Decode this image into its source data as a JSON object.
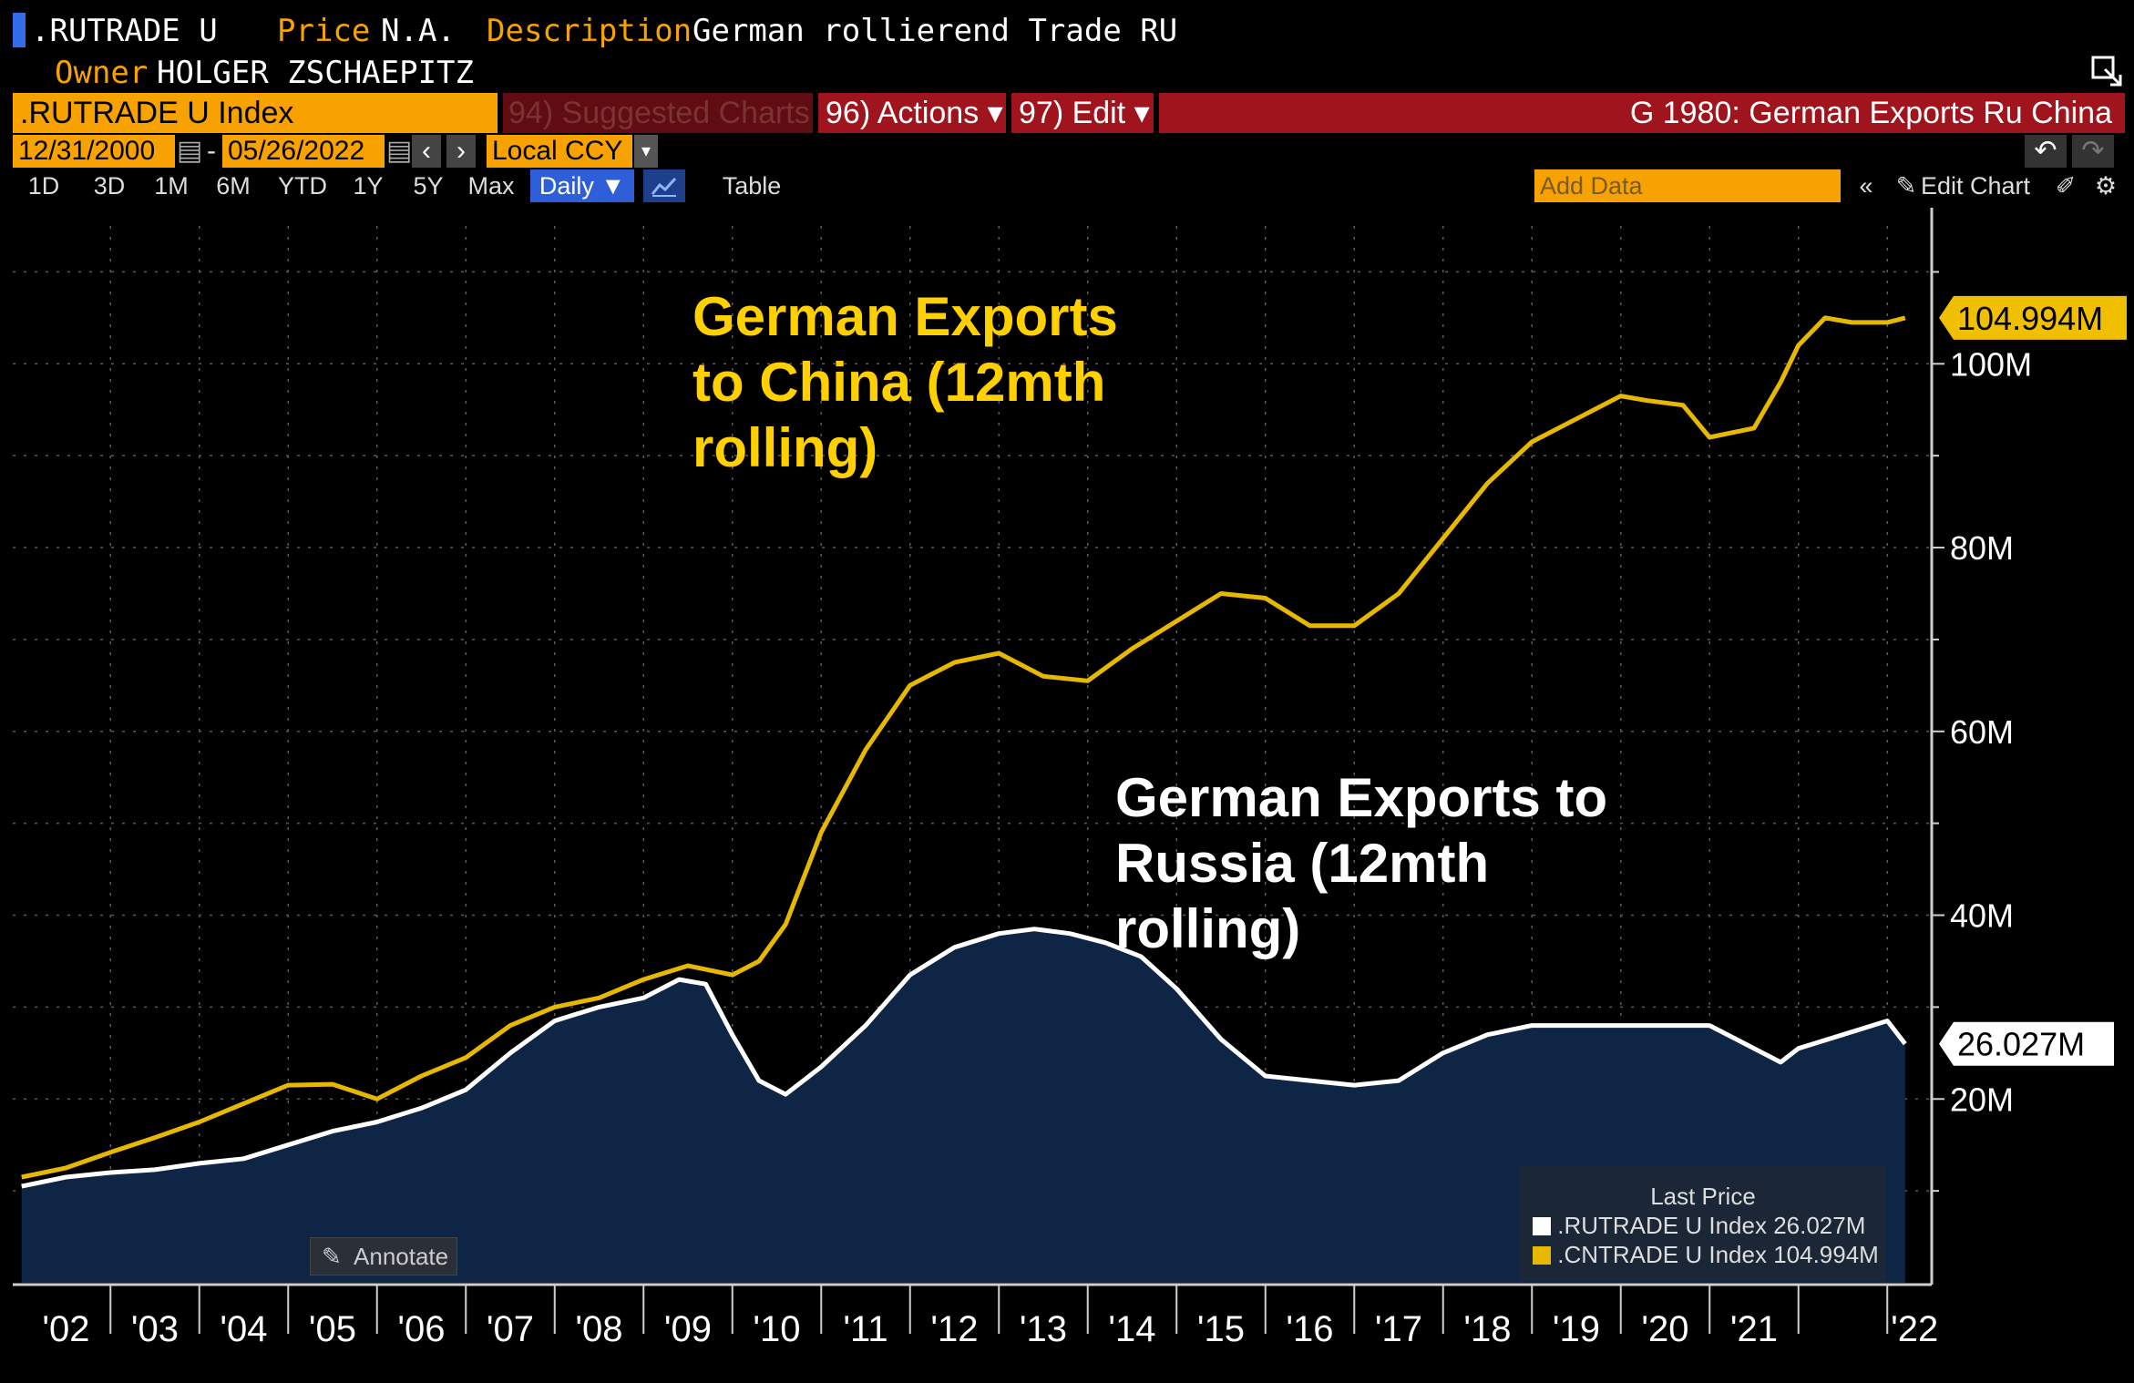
{
  "header": {
    "ticker": ".RUTRADE U",
    "price_label": "Price",
    "price_value": "N.A.",
    "description_label": "Description",
    "description_value": "German rollierend Trade RU",
    "owner_label": "Owner",
    "owner_value": "HOLGER ZSCHAEPITZ"
  },
  "toolbar": {
    "security": ".RUTRADE U Index",
    "suggested": "94) Suggested Charts",
    "actions": "96) Actions ▾",
    "edit": "97) Edit ▾",
    "chart_title": "G 1980: German Exports Ru China",
    "start_date": "12/31/2000",
    "date_sep": "-",
    "end_date": "05/26/2022",
    "currency": "Local CCY",
    "add_data_placeholder": "Add Data",
    "edit_chart": "Edit Chart"
  },
  "ranges": [
    "1D",
    "3D",
    "1M",
    "6M",
    "YTD",
    "1Y",
    "5Y",
    "Max"
  ],
  "frequency": "Daily ▼",
  "table_label": "Table",
  "annotate_label": "Annotate",
  "colors": {
    "china_line": "#e6b800",
    "russia_line": "#ffffff",
    "russia_fill": "#0f2545",
    "china_label": "#ffd000",
    "last_price_china_bg": "#f0c000"
  },
  "chart_data": {
    "type": "line",
    "xlabel": "",
    "ylabel": "",
    "ylim": [
      0,
      115
    ],
    "xlim": [
      2000.9,
      2022.5
    ],
    "y_ticks": [
      20,
      40,
      60,
      80,
      100
    ],
    "y_tick_labels": [
      "20M",
      "40M",
      "60M",
      "80M",
      "100M"
    ],
    "x_tick_labels": [
      "'02",
      "'03",
      "'04",
      "'05",
      "'06",
      "'07",
      "'08",
      "'09",
      "'10",
      "'11",
      "'12",
      "'13",
      "'14",
      "'15",
      "'16",
      "'17",
      "'18",
      "'19",
      "'20",
      "'21",
      "'22"
    ],
    "x_tick_years": [
      2002,
      2003,
      2004,
      2005,
      2006,
      2007,
      2008,
      2009,
      2010,
      2011,
      2012,
      2013,
      2014,
      2015,
      2016,
      2017,
      2018,
      2019,
      2020,
      2021,
      2022
    ],
    "grid": true,
    "annotations": {
      "china": "German Exports\nto China (12mth\nrolling)",
      "russia": "German Exports to\nRussia (12mth\nrolling)"
    },
    "legend": {
      "title": "Last Price",
      "placement": "bottom-right",
      "entries": [
        {
          "name": ".RUTRADE U Index",
          "value": "26.027M"
        },
        {
          "name": ".CNTRADE U Index",
          "value": "104.994M"
        }
      ]
    },
    "last_labels": {
      "china": "104.994M",
      "russia": "26.027M"
    },
    "series": [
      {
        "name": ".CNTRADE U Index",
        "x": [
          2001.0,
          2001.5,
          2002.0,
          2002.5,
          2003.0,
          2003.5,
          2004.0,
          2004.5,
          2005.0,
          2005.5,
          2006.0,
          2006.5,
          2007.0,
          2007.5,
          2008.0,
          2008.5,
          2009.0,
          2009.3,
          2009.6,
          2010.0,
          2010.5,
          2011.0,
          2011.5,
          2012.0,
          2012.5,
          2013.0,
          2013.5,
          2014.0,
          2014.5,
          2015.0,
          2015.5,
          2016.0,
          2016.5,
          2017.0,
          2017.5,
          2018.0,
          2018.5,
          2019.0,
          2019.3,
          2019.7,
          2020.0,
          2020.5,
          2020.8,
          2021.0,
          2021.3,
          2021.6,
          2022.0,
          2022.2
        ],
        "values": [
          11.5,
          12.5,
          14.2,
          15.8,
          17.5,
          19.5,
          21.5,
          21.6,
          20.0,
          22.5,
          24.5,
          28.0,
          30.0,
          31.0,
          33.0,
          34.5,
          33.5,
          35.0,
          39.0,
          49.0,
          58.0,
          65.0,
          67.5,
          68.5,
          66.0,
          65.5,
          69.0,
          72.0,
          75.0,
          74.5,
          71.5,
          71.5,
          75.0,
          81.0,
          87.0,
          91.5,
          94.0,
          96.5,
          96.0,
          95.5,
          92.0,
          93.0,
          98.0,
          102.0,
          105.0,
          104.5,
          104.5,
          105.0
        ]
      },
      {
        "name": ".RUTRADE U Index",
        "x": [
          2001.0,
          2001.5,
          2002.0,
          2002.5,
          2003.0,
          2003.5,
          2004.0,
          2004.5,
          2005.0,
          2005.5,
          2006.0,
          2006.5,
          2007.0,
          2007.5,
          2008.0,
          2008.4,
          2008.7,
          2009.0,
          2009.3,
          2009.6,
          2010.0,
          2010.5,
          2011.0,
          2011.5,
          2012.0,
          2012.4,
          2012.8,
          2013.2,
          2013.6,
          2014.0,
          2014.5,
          2015.0,
          2015.5,
          2016.0,
          2016.5,
          2017.0,
          2017.5,
          2018.0,
          2018.5,
          2019.0,
          2019.5,
          2020.0,
          2020.5,
          2020.8,
          2021.0,
          2021.5,
          2022.0,
          2022.2
        ],
        "values": [
          10.5,
          11.5,
          12.0,
          12.3,
          13.0,
          13.5,
          15.0,
          16.5,
          17.5,
          19.0,
          21.0,
          25.0,
          28.5,
          30.0,
          31.0,
          33.0,
          32.5,
          27.0,
          22.0,
          20.5,
          23.5,
          28.0,
          33.5,
          36.5,
          38.0,
          38.5,
          38.0,
          37.0,
          35.5,
          32.0,
          26.5,
          22.5,
          22.0,
          21.5,
          22.0,
          25.0,
          27.0,
          28.0,
          28.0,
          28.0,
          28.0,
          28.0,
          25.5,
          24.0,
          25.5,
          27.0,
          28.5,
          26.0
        ]
      }
    ]
  }
}
